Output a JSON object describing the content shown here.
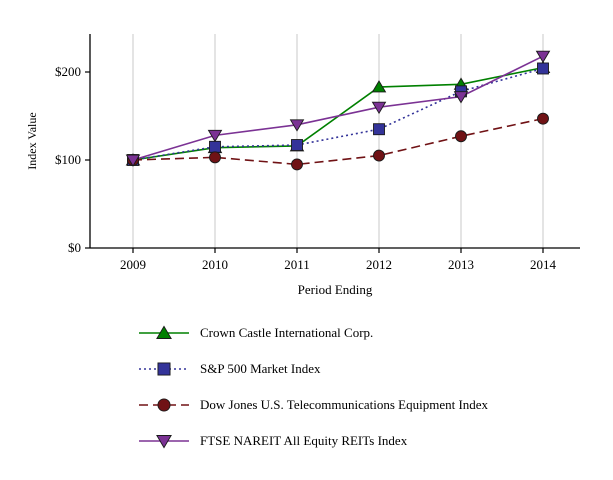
{
  "chart_data": {
    "type": "line",
    "title": "",
    "xlabel": "Period Ending",
    "ylabel": "Index Value",
    "x": [
      "2009",
      "2010",
      "2011",
      "2012",
      "2013",
      "2014"
    ],
    "ylim": [
      0,
      240
    ],
    "ytick_values": [
      0,
      100,
      200
    ],
    "ytick_labels": [
      "$0",
      "$100",
      "$200"
    ],
    "grid": "vertical",
    "legend_position": "bottom-left",
    "series": [
      {
        "name": "Crown Castle International Corp.",
        "values": [
          100,
          114,
          116,
          183,
          186,
          205
        ],
        "color": "#008000",
        "marker": "triangle-up",
        "line_style": "solid"
      },
      {
        "name": "S&P 500 Market Index",
        "values": [
          100,
          115,
          117,
          135,
          178,
          204
        ],
        "color": "#333399",
        "marker": "square",
        "line_style": "dotted"
      },
      {
        "name": "Dow Jones U.S. Telecommunications Equipment Index",
        "values": [
          100,
          103,
          95,
          105,
          127,
          147
        ],
        "color": "#701215",
        "marker": "circle",
        "line_style": "dashed"
      },
      {
        "name": "FTSE NAREIT All Equity REITs Index",
        "values": [
          100,
          128,
          140,
          160,
          172,
          218
        ],
        "color": "#7B3294",
        "marker": "triangle-down",
        "line_style": "solid"
      }
    ],
    "colors": {
      "axis": "#000000",
      "gridline": "#c8c8c8",
      "marker_outline": "#1a1a1a"
    }
  }
}
